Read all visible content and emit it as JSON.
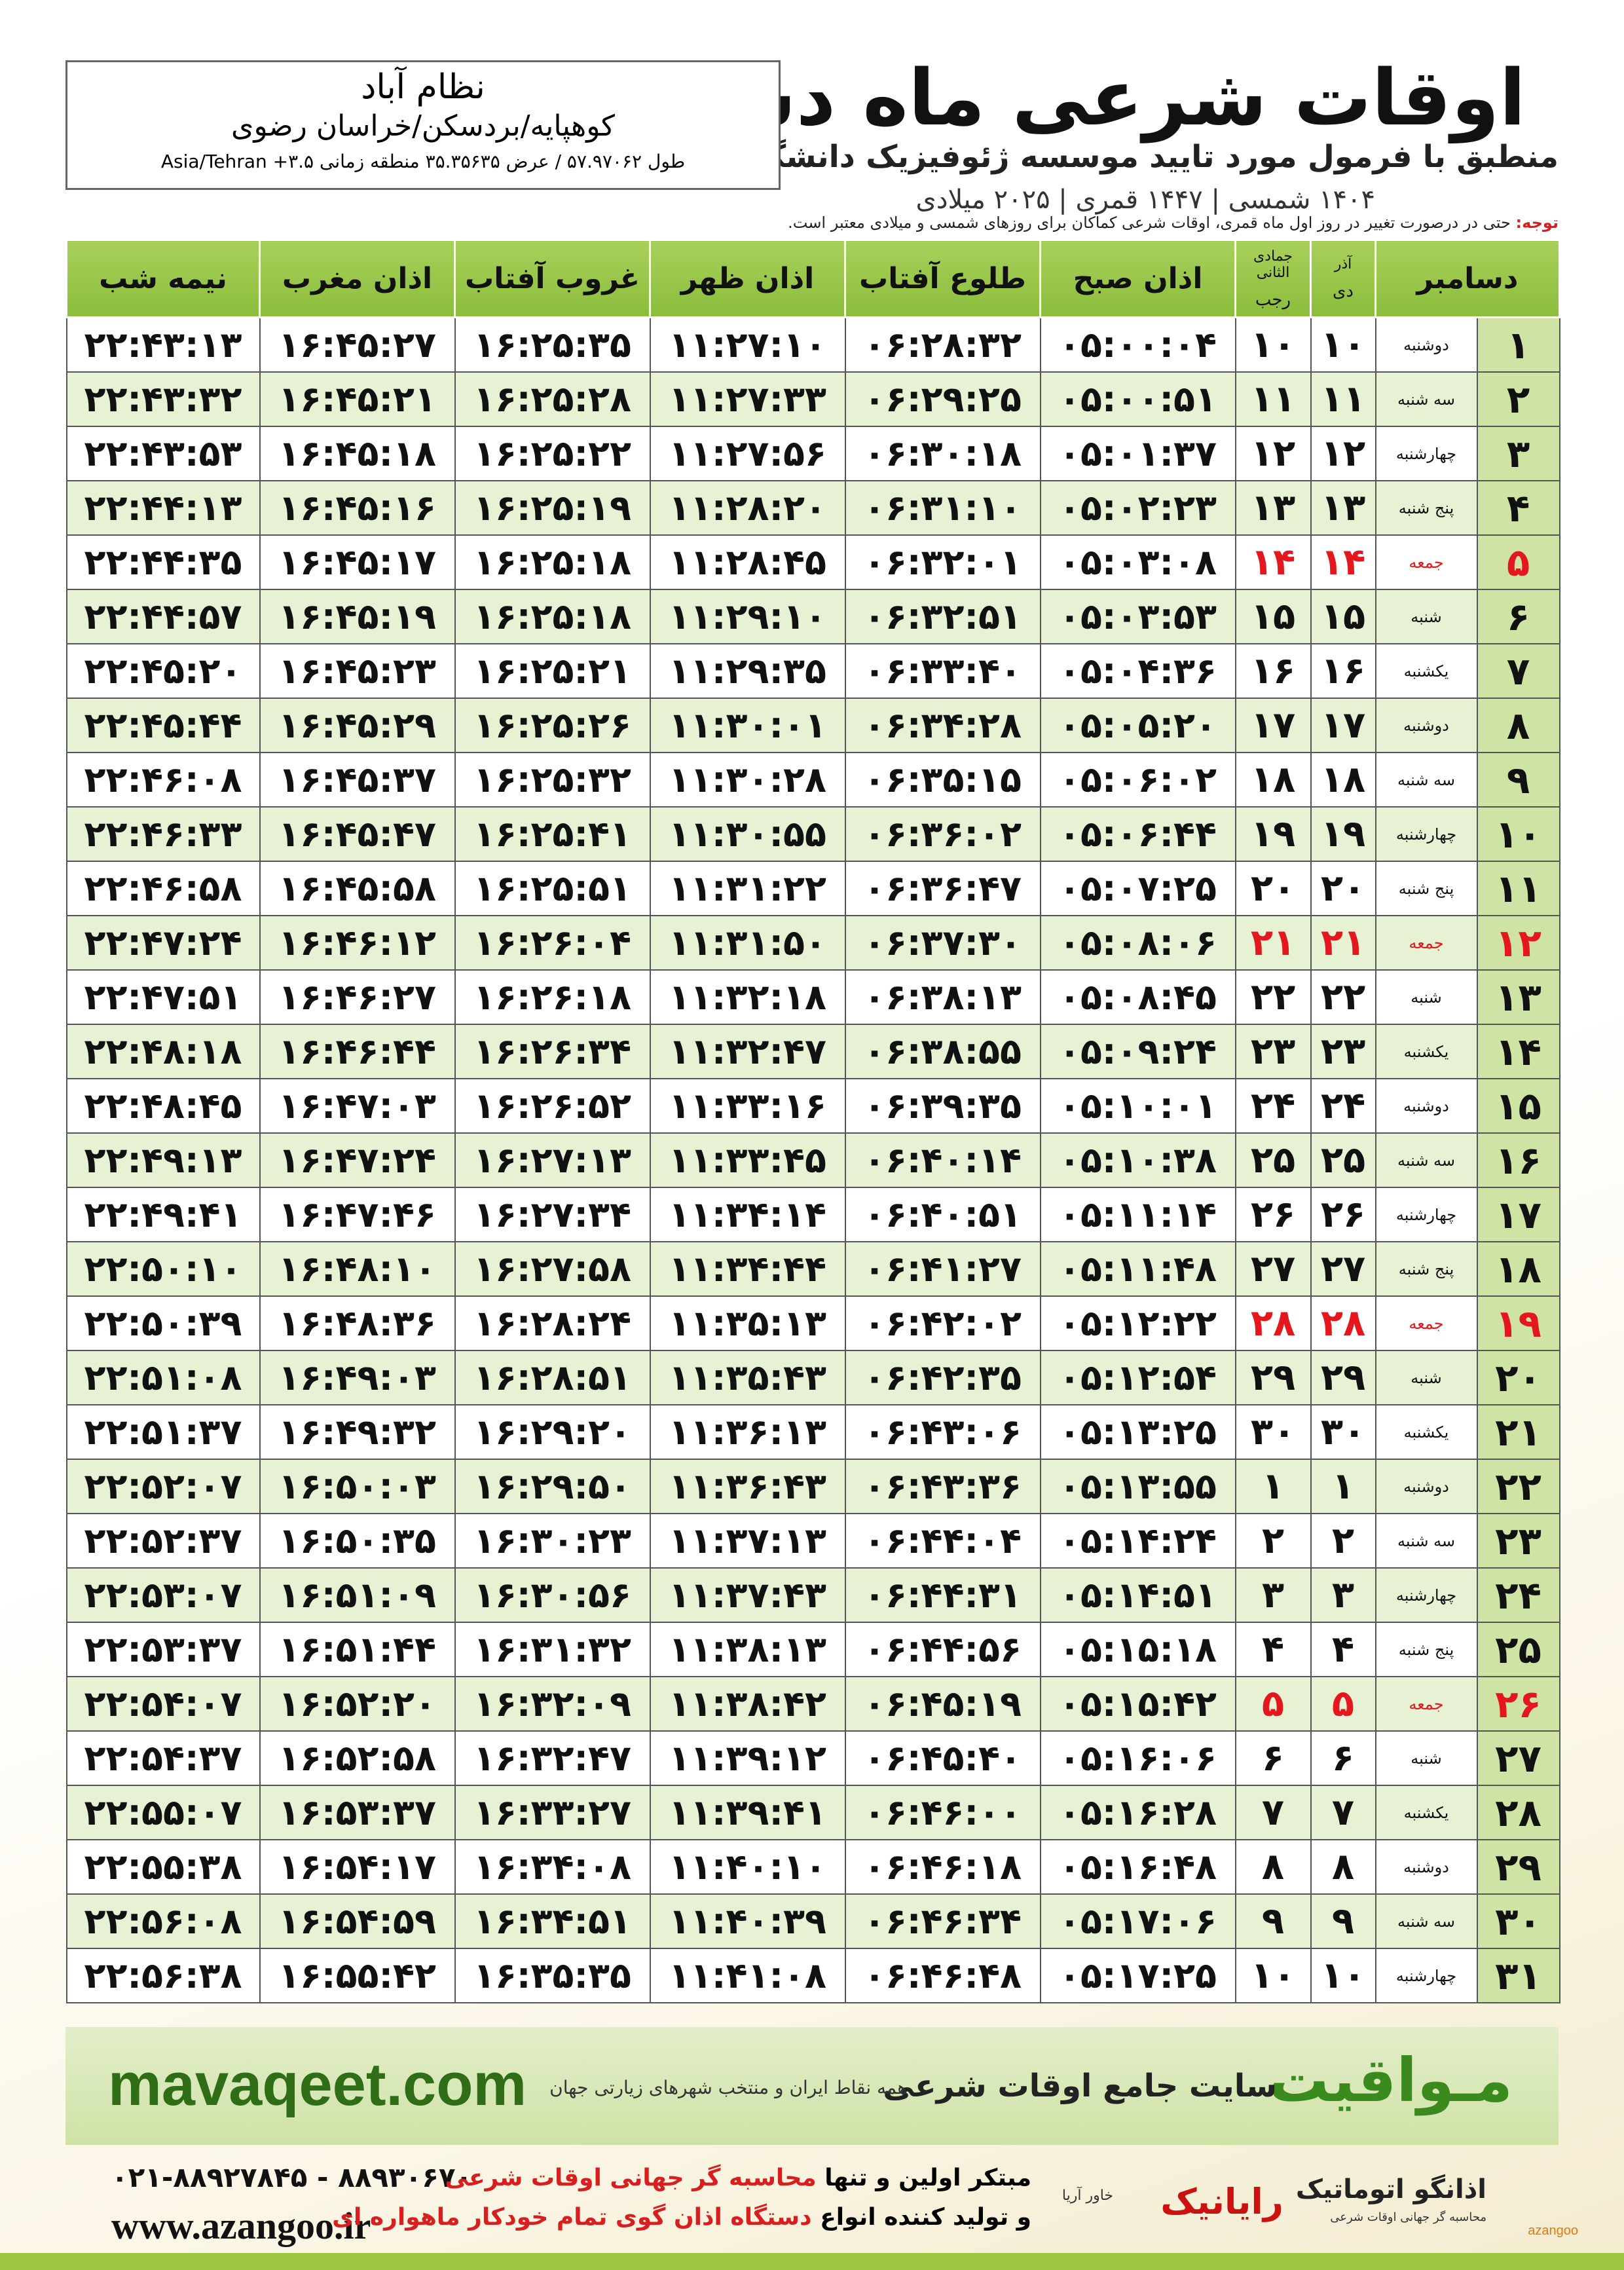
{
  "header": {
    "title": "اوقات شرعی ماه دسامبر",
    "subtitle": "منطبق با فرمول مورد تایید موسسه ژئوفیزیک دانشگاه تهران",
    "dates": "۱۴۰۴ شمسی | ۱۴۴۷ قمری | ۲۰۲۵ میلادی"
  },
  "location": {
    "name": "نظام آباد",
    "region": "کوهپایه/بردسکن/خراسان رضوی",
    "coords": "طول ۵۷.۹۷۰۶۲ / عرض ۳۵.۳۵۶۳۵ منطقه زمانی ۳.۵+ Asia/Tehran"
  },
  "note": {
    "label": "توجه:",
    "text": "حتی در درصورت تغییر در روز اول ماه قمری، اوقات شرعی کماکان برای روزهای شمسی و میلادی معتبر است."
  },
  "table": {
    "columns": [
      {
        "label": "دسامبر"
      },
      {
        "top": "آذر",
        "label": "دی"
      },
      {
        "top": "جمادی الثانی",
        "label": "رجب"
      },
      {
        "label": "اذان صبح"
      },
      {
        "label": "طلوع آفتاب"
      },
      {
        "label": "اذان ظهر"
      },
      {
        "label": "غروب آفتاب"
      },
      {
        "label": "اذان مغرب"
      },
      {
        "label": "نیمه شب"
      }
    ],
    "rows": [
      [
        "۱",
        "دوشنبه",
        "۱۰",
        "۱۰",
        "۰۵:۰۰:۰۴",
        "۰۶:۲۸:۳۲",
        "۱۱:۲۷:۱۰",
        "۱۶:۲۵:۳۵",
        "۱۶:۴۵:۲۷",
        "۲۲:۴۳:۱۳"
      ],
      [
        "۲",
        "سه شنبه",
        "۱۱",
        "۱۱",
        "۰۵:۰۰:۵۱",
        "۰۶:۲۹:۲۵",
        "۱۱:۲۷:۳۳",
        "۱۶:۲۵:۲۸",
        "۱۶:۴۵:۲۱",
        "۲۲:۴۳:۳۲"
      ],
      [
        "۳",
        "چهارشنبه",
        "۱۲",
        "۱۲",
        "۰۵:۰۱:۳۷",
        "۰۶:۳۰:۱۸",
        "۱۱:۲۷:۵۶",
        "۱۶:۲۵:۲۲",
        "۱۶:۴۵:۱۸",
        "۲۲:۴۳:۵۳"
      ],
      [
        "۴",
        "پنج شنبه",
        "۱۳",
        "۱۳",
        "۰۵:۰۲:۲۳",
        "۰۶:۳۱:۱۰",
        "۱۱:۲۸:۲۰",
        "۱۶:۲۵:۱۹",
        "۱۶:۴۵:۱۶",
        "۲۲:۴۴:۱۳"
      ],
      [
        "۵",
        "جمعه",
        "۱۴",
        "۱۴",
        "۰۵:۰۳:۰۸",
        "۰۶:۳۲:۰۱",
        "۱۱:۲۸:۴۵",
        "۱۶:۲۵:۱۸",
        "۱۶:۴۵:۱۷",
        "۲۲:۴۴:۳۵"
      ],
      [
        "۶",
        "شنبه",
        "۱۵",
        "۱۵",
        "۰۵:۰۳:۵۳",
        "۰۶:۳۲:۵۱",
        "۱۱:۲۹:۱۰",
        "۱۶:۲۵:۱۸",
        "۱۶:۴۵:۱۹",
        "۲۲:۴۴:۵۷"
      ],
      [
        "۷",
        "یکشنبه",
        "۱۶",
        "۱۶",
        "۰۵:۰۴:۳۶",
        "۰۶:۳۳:۴۰",
        "۱۱:۲۹:۳۵",
        "۱۶:۲۵:۲۱",
        "۱۶:۴۵:۲۳",
        "۲۲:۴۵:۲۰"
      ],
      [
        "۸",
        "دوشنبه",
        "۱۷",
        "۱۷",
        "۰۵:۰۵:۲۰",
        "۰۶:۳۴:۲۸",
        "۱۱:۳۰:۰۱",
        "۱۶:۲۵:۲۶",
        "۱۶:۴۵:۲۹",
        "۲۲:۴۵:۴۴"
      ],
      [
        "۹",
        "سه شنبه",
        "۱۸",
        "۱۸",
        "۰۵:۰۶:۰۲",
        "۰۶:۳۵:۱۵",
        "۱۱:۳۰:۲۸",
        "۱۶:۲۵:۳۲",
        "۱۶:۴۵:۳۷",
        "۲۲:۴۶:۰۸"
      ],
      [
        "۱۰",
        "چهارشنبه",
        "۱۹",
        "۱۹",
        "۰۵:۰۶:۴۴",
        "۰۶:۳۶:۰۲",
        "۱۱:۳۰:۵۵",
        "۱۶:۲۵:۴۱",
        "۱۶:۴۵:۴۷",
        "۲۲:۴۶:۳۳"
      ],
      [
        "۱۱",
        "پنج شنبه",
        "۲۰",
        "۲۰",
        "۰۵:۰۷:۲۵",
        "۰۶:۳۶:۴۷",
        "۱۱:۳۱:۲۲",
        "۱۶:۲۵:۵۱",
        "۱۶:۴۵:۵۸",
        "۲۲:۴۶:۵۸"
      ],
      [
        "۱۲",
        "جمعه",
        "۲۱",
        "۲۱",
        "۰۵:۰۸:۰۶",
        "۰۶:۳۷:۳۰",
        "۱۱:۳۱:۵۰",
        "۱۶:۲۶:۰۴",
        "۱۶:۴۶:۱۲",
        "۲۲:۴۷:۲۴"
      ],
      [
        "۱۳",
        "شنبه",
        "۲۲",
        "۲۲",
        "۰۵:۰۸:۴۵",
        "۰۶:۳۸:۱۳",
        "۱۱:۳۲:۱۸",
        "۱۶:۲۶:۱۸",
        "۱۶:۴۶:۲۷",
        "۲۲:۴۷:۵۱"
      ],
      [
        "۱۴",
        "یکشنبه",
        "۲۳",
        "۲۳",
        "۰۵:۰۹:۲۴",
        "۰۶:۳۸:۵۵",
        "۱۱:۳۲:۴۷",
        "۱۶:۲۶:۳۴",
        "۱۶:۴۶:۴۴",
        "۲۲:۴۸:۱۸"
      ],
      [
        "۱۵",
        "دوشنبه",
        "۲۴",
        "۲۴",
        "۰۵:۱۰:۰۱",
        "۰۶:۳۹:۳۵",
        "۱۱:۳۳:۱۶",
        "۱۶:۲۶:۵۲",
        "۱۶:۴۷:۰۳",
        "۲۲:۴۸:۴۵"
      ],
      [
        "۱۶",
        "سه شنبه",
        "۲۵",
        "۲۵",
        "۰۵:۱۰:۳۸",
        "۰۶:۴۰:۱۴",
        "۱۱:۳۳:۴۵",
        "۱۶:۲۷:۱۳",
        "۱۶:۴۷:۲۴",
        "۲۲:۴۹:۱۳"
      ],
      [
        "۱۷",
        "چهارشنبه",
        "۲۶",
        "۲۶",
        "۰۵:۱۱:۱۴",
        "۰۶:۴۰:۵۱",
        "۱۱:۳۴:۱۴",
        "۱۶:۲۷:۳۴",
        "۱۶:۴۷:۴۶",
        "۲۲:۴۹:۴۱"
      ],
      [
        "۱۸",
        "پنج شنبه",
        "۲۷",
        "۲۷",
        "۰۵:۱۱:۴۸",
        "۰۶:۴۱:۲۷",
        "۱۱:۳۴:۴۴",
        "۱۶:۲۷:۵۸",
        "۱۶:۴۸:۱۰",
        "۲۲:۵۰:۱۰"
      ],
      [
        "۱۹",
        "جمعه",
        "۲۸",
        "۲۸",
        "۰۵:۱۲:۲۲",
        "۰۶:۴۲:۰۲",
        "۱۱:۳۵:۱۳",
        "۱۶:۲۸:۲۴",
        "۱۶:۴۸:۳۶",
        "۲۲:۵۰:۳۹"
      ],
      [
        "۲۰",
        "شنبه",
        "۲۹",
        "۲۹",
        "۰۵:۱۲:۵۴",
        "۰۶:۴۲:۳۵",
        "۱۱:۳۵:۴۳",
        "۱۶:۲۸:۵۱",
        "۱۶:۴۹:۰۳",
        "۲۲:۵۱:۰۸"
      ],
      [
        "۲۱",
        "یکشنبه",
        "۳۰",
        "۳۰",
        "۰۵:۱۳:۲۵",
        "۰۶:۴۳:۰۶",
        "۱۱:۳۶:۱۳",
        "۱۶:۲۹:۲۰",
        "۱۶:۴۹:۳۲",
        "۲۲:۵۱:۳۷"
      ],
      [
        "۲۲",
        "دوشنبه",
        "۱",
        "۱",
        "۰۵:۱۳:۵۵",
        "۰۶:۴۳:۳۶",
        "۱۱:۳۶:۴۳",
        "۱۶:۲۹:۵۰",
        "۱۶:۵۰:۰۳",
        "۲۲:۵۲:۰۷"
      ],
      [
        "۲۳",
        "سه شنبه",
        "۲",
        "۲",
        "۰۵:۱۴:۲۴",
        "۰۶:۴۴:۰۴",
        "۱۱:۳۷:۱۳",
        "۱۶:۳۰:۲۳",
        "۱۶:۵۰:۳۵",
        "۲۲:۵۲:۳۷"
      ],
      [
        "۲۴",
        "چهارشنبه",
        "۳",
        "۳",
        "۰۵:۱۴:۵۱",
        "۰۶:۴۴:۳۱",
        "۱۱:۳۷:۴۳",
        "۱۶:۳۰:۵۶",
        "۱۶:۵۱:۰۹",
        "۲۲:۵۳:۰۷"
      ],
      [
        "۲۵",
        "پنج شنبه",
        "۴",
        "۴",
        "۰۵:۱۵:۱۸",
        "۰۶:۴۴:۵۶",
        "۱۱:۳۸:۱۳",
        "۱۶:۳۱:۳۲",
        "۱۶:۵۱:۴۴",
        "۲۲:۵۳:۳۷"
      ],
      [
        "۲۶",
        "جمعه",
        "۵",
        "۵",
        "۰۵:۱۵:۴۲",
        "۰۶:۴۵:۱۹",
        "۱۱:۳۸:۴۲",
        "۱۶:۳۲:۰۹",
        "۱۶:۵۲:۲۰",
        "۲۲:۵۴:۰۷"
      ],
      [
        "۲۷",
        "شنبه",
        "۶",
        "۶",
        "۰۵:۱۶:۰۶",
        "۰۶:۴۵:۴۰",
        "۱۱:۳۹:۱۲",
        "۱۶:۳۲:۴۷",
        "۱۶:۵۲:۵۸",
        "۲۲:۵۴:۳۷"
      ],
      [
        "۲۸",
        "یکشنبه",
        "۷",
        "۷",
        "۰۵:۱۶:۲۸",
        "۰۶:۴۶:۰۰",
        "۱۱:۳۹:۴۱",
        "۱۶:۳۳:۲۷",
        "۱۶:۵۳:۳۷",
        "۲۲:۵۵:۰۷"
      ],
      [
        "۲۹",
        "دوشنبه",
        "۸",
        "۸",
        "۰۵:۱۶:۴۸",
        "۰۶:۴۶:۱۸",
        "۱۱:۴۰:۱۰",
        "۱۶:۳۴:۰۸",
        "۱۶:۵۴:۱۷",
        "۲۲:۵۵:۳۸"
      ],
      [
        "۳۰",
        "سه شنبه",
        "۹",
        "۹",
        "۰۵:۱۷:۰۶",
        "۰۶:۴۶:۳۴",
        "۱۱:۴۰:۳۹",
        "۱۶:۳۴:۵۱",
        "۱۶:۵۴:۵۹",
        "۲۲:۵۶:۰۸"
      ],
      [
        "۳۱",
        "چهارشنبه",
        "۱۰",
        "۱۰",
        "۰۵:۱۷:۲۵",
        "۰۶:۴۶:۴۸",
        "۱۱:۴۱:۰۸",
        "۱۶:۳۵:۳۵",
        "۱۶:۵۵:۴۲",
        "۲۲:۵۶:۳۸"
      ]
    ]
  },
  "banner": {
    "brand": "مـواقیت",
    "site": "سایت جامع اوقات شرعی",
    "coverage": "همه نقاط ایران و منتخب شهرهای زیارتی جهان",
    "url": "mavaqeet.com"
  },
  "footer": {
    "phones": "۰۲۱-۸۸۹۲۷۸۴۵ - ۸۸۹۳۰۶۷۰",
    "web": "www.azangoo.ir",
    "line1_start": "مبتکر اولین و تنها",
    "line1_highlight": "محاسبه گر جهانی اوقات شرعی",
    "line2_start": "و تولید کننده انواع",
    "line2_highlight": "دستگاه اذان گوی تمام خودکار ماهواره ای",
    "raianik": "رایانیک",
    "khavar": "خاور آریا",
    "azangoo_name": "اذانگو اتوماتیک",
    "azangoo_tag": "محاسبه گر جهانی اوقات شرعی",
    "azangoo_latin": "azangoo"
  }
}
